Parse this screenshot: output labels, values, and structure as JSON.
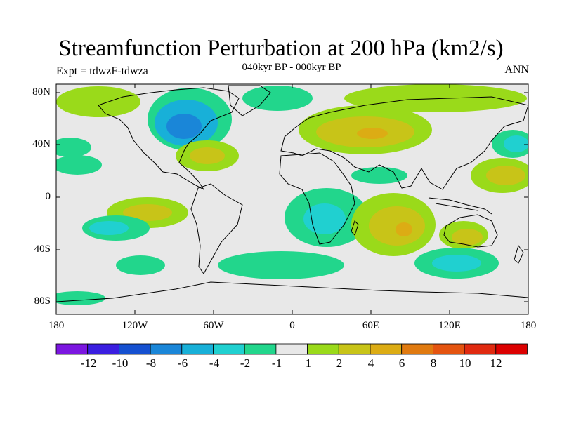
{
  "title": "Streamfunction Perturbation at 200 hPa (km2/s)",
  "subtitle": "040kyr BP - 000kyr BP",
  "left_label": "Expt = tdwzF-tdwza",
  "right_label": "ANN",
  "lat_labels": [
    "80N",
    "40N",
    "0",
    "40S",
    "80S"
  ],
  "lon_labels": [
    "180",
    "120W",
    "60W",
    "0",
    "60E",
    "120E",
    "180"
  ],
  "colorbar": {
    "labels": [
      "-12",
      "-10",
      "-8",
      "-6",
      "-4",
      "-2",
      "-1",
      "1",
      "2",
      "4",
      "6",
      "8",
      "10",
      "12"
    ],
    "colors": [
      "#7b16e0",
      "#3a1ee0",
      "#1550d0",
      "#1a86d8",
      "#18b0d8",
      "#20d0d0",
      "#22d68c",
      "#e8e8e8",
      "#9ada1a",
      "#c8c418",
      "#dcac14",
      "#e07a10",
      "#e45410",
      "#e02a10",
      "#dc0000"
    ]
  },
  "map_colors": {
    "neutral": "#e8e8e8",
    "pos1": "#9ada1a",
    "pos2": "#c8c418",
    "pos3": "#dcac14",
    "neg1": "#22d68c",
    "neg2": "#20d0d0",
    "neg3": "#18b0d8",
    "neg4": "#1a86d8"
  }
}
